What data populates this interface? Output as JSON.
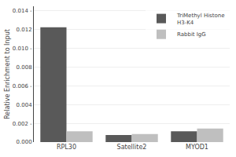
{
  "chart_data": {
    "type": "bar",
    "categories": [
      "RPL30",
      "Satellite2",
      "MYOD1"
    ],
    "series": [
      {
        "name": "TriMethyl Histone\nH3-K4",
        "color": "#595959",
        "values": [
          0.01225,
          0.00075,
          0.00115
        ]
      },
      {
        "name": "Rabbit IgG",
        "color": "#bfbfbf",
        "values": [
          0.00115,
          0.00085,
          0.00145
        ]
      }
    ],
    "ylabel": "Relative Enrichment to Input",
    "ylim": [
      0,
      0.0145
    ],
    "yticks": [
      {
        "value": 0.0,
        "label": "0.000"
      },
      {
        "value": 0.002,
        "label": "0.002 -"
      },
      {
        "value": 0.004,
        "label": "0.004"
      },
      {
        "value": 0.006,
        "label": "0.006 -"
      },
      {
        "value": 0.008,
        "label": "0.008"
      },
      {
        "value": 0.01,
        "label": "0.010 -"
      },
      {
        "value": 0.012,
        "label": "0.012"
      },
      {
        "value": 0.014,
        "label": "0.014 -"
      }
    ],
    "grid": true,
    "legend": "upper right"
  }
}
